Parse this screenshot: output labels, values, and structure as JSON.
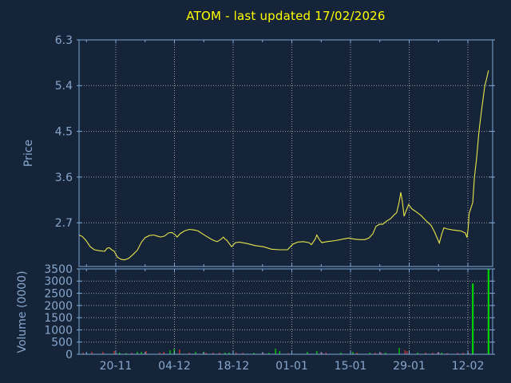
{
  "chart_data": {
    "type": "line",
    "title": "ATOM - last updated 17/02/2026",
    "title_color": "#ffff00",
    "colors": {
      "background": "#162439",
      "axis_frame": "#7fa8d4",
      "labels": "#87a7cd",
      "grid": "#c8c8c8",
      "price_line": "#e6e64a",
      "volume_up": "#00d200",
      "volume_down": "#d53434"
    },
    "x_axis": {
      "tick_labels": [
        "20-11",
        "04-12",
        "18-12",
        "01-01",
        "15-01",
        "29-01",
        "12-02"
      ],
      "tick_pos": [
        0.0888,
        0.2307,
        0.3726,
        0.5145,
        0.6564,
        0.7983,
        0.9402
      ],
      "minor_tick_pos": [
        0.0179,
        0.1598,
        0.3017,
        0.4436,
        0.5854,
        0.7273,
        0.8692
      ]
    },
    "panes": [
      {
        "name": "price",
        "type": "line",
        "ylabel": "Price",
        "yticks": [
          6.3,
          5.4,
          4.5,
          3.6,
          2.7
        ],
        "ylim": [
          1.84,
          6.3
        ],
        "points": [
          [
            0.0,
            2.46
          ],
          [
            0.008,
            2.43
          ],
          [
            0.017,
            2.35
          ],
          [
            0.027,
            2.23
          ],
          [
            0.037,
            2.17
          ],
          [
            0.05,
            2.15
          ],
          [
            0.062,
            2.14
          ],
          [
            0.068,
            2.2
          ],
          [
            0.073,
            2.21
          ],
          [
            0.079,
            2.17
          ],
          [
            0.085,
            2.14
          ],
          [
            0.093,
            2.02
          ],
          [
            0.102,
            1.98
          ],
          [
            0.11,
            1.97
          ],
          [
            0.12,
            2.0
          ],
          [
            0.131,
            2.08
          ],
          [
            0.141,
            2.16
          ],
          [
            0.151,
            2.32
          ],
          [
            0.16,
            2.41
          ],
          [
            0.17,
            2.45
          ],
          [
            0.18,
            2.46
          ],
          [
            0.189,
            2.44
          ],
          [
            0.197,
            2.42
          ],
          [
            0.207,
            2.44
          ],
          [
            0.216,
            2.5
          ],
          [
            0.224,
            2.51
          ],
          [
            0.232,
            2.47
          ],
          [
            0.237,
            2.42
          ],
          [
            0.245,
            2.49
          ],
          [
            0.255,
            2.54
          ],
          [
            0.266,
            2.57
          ],
          [
            0.278,
            2.56
          ],
          [
            0.288,
            2.54
          ],
          [
            0.297,
            2.49
          ],
          [
            0.307,
            2.44
          ],
          [
            0.317,
            2.39
          ],
          [
            0.326,
            2.35
          ],
          [
            0.334,
            2.33
          ],
          [
            0.342,
            2.37
          ],
          [
            0.349,
            2.42
          ],
          [
            0.353,
            2.38
          ],
          [
            0.357,
            2.36
          ],
          [
            0.369,
            2.23
          ],
          [
            0.378,
            2.31
          ],
          [
            0.388,
            2.32
          ],
          [
            0.407,
            2.29
          ],
          [
            0.427,
            2.25
          ],
          [
            0.446,
            2.23
          ],
          [
            0.465,
            2.18
          ],
          [
            0.485,
            2.17
          ],
          [
            0.504,
            2.17
          ],
          [
            0.517,
            2.28
          ],
          [
            0.529,
            2.32
          ],
          [
            0.542,
            2.33
          ],
          [
            0.556,
            2.31
          ],
          [
            0.562,
            2.27
          ],
          [
            0.571,
            2.38
          ],
          [
            0.575,
            2.46
          ],
          [
            0.581,
            2.37
          ],
          [
            0.587,
            2.31
          ],
          [
            0.6,
            2.33
          ],
          [
            0.62,
            2.35
          ],
          [
            0.639,
            2.38
          ],
          [
            0.652,
            2.4
          ],
          [
            0.664,
            2.38
          ],
          [
            0.678,
            2.37
          ],
          [
            0.691,
            2.37
          ],
          [
            0.701,
            2.4
          ],
          [
            0.71,
            2.48
          ],
          [
            0.718,
            2.63
          ],
          [
            0.726,
            2.67
          ],
          [
            0.734,
            2.67
          ],
          [
            0.743,
            2.73
          ],
          [
            0.753,
            2.78
          ],
          [
            0.761,
            2.85
          ],
          [
            0.768,
            2.9
          ],
          [
            0.774,
            3.11
          ],
          [
            0.778,
            3.3
          ],
          [
            0.782,
            3.1
          ],
          [
            0.786,
            2.83
          ],
          [
            0.791,
            2.94
          ],
          [
            0.797,
            3.06
          ],
          [
            0.805,
            2.97
          ],
          [
            0.813,
            2.93
          ],
          [
            0.826,
            2.85
          ],
          [
            0.838,
            2.75
          ],
          [
            0.851,
            2.65
          ],
          [
            0.859,
            2.53
          ],
          [
            0.867,
            2.38
          ],
          [
            0.871,
            2.3
          ],
          [
            0.877,
            2.48
          ],
          [
            0.882,
            2.6
          ],
          [
            0.89,
            2.58
          ],
          [
            0.903,
            2.56
          ],
          [
            0.923,
            2.54
          ],
          [
            0.934,
            2.5
          ],
          [
            0.938,
            2.41
          ],
          [
            0.941,
            2.6
          ],
          [
            0.943,
            2.88
          ],
          [
            0.946,
            2.95
          ],
          [
            0.952,
            3.1
          ],
          [
            0.956,
            3.6
          ],
          [
            0.961,
            3.95
          ],
          [
            0.967,
            4.5
          ],
          [
            0.973,
            4.9
          ],
          [
            0.981,
            5.4
          ],
          [
            0.986,
            5.55
          ],
          [
            0.99,
            5.7
          ]
        ]
      },
      {
        "name": "volume",
        "type": "bar",
        "ylabel": "Volume (0000)",
        "yticks": [
          3500,
          3000,
          2500,
          2000,
          1500,
          1000,
          500,
          0
        ],
        "ylim": [
          0,
          3500
        ],
        "bars": [
          [
            0.01,
            70,
            "r"
          ],
          [
            0.031,
            100,
            "r"
          ],
          [
            0.058,
            100,
            "r"
          ],
          [
            0.085,
            130,
            "r"
          ],
          [
            0.098,
            70,
            "g"
          ],
          [
            0.114,
            50,
            "g"
          ],
          [
            0.127,
            60,
            "r"
          ],
          [
            0.141,
            100,
            "g"
          ],
          [
            0.151,
            100,
            "g"
          ],
          [
            0.162,
            130,
            "r"
          ],
          [
            0.195,
            70,
            "r"
          ],
          [
            0.205,
            100,
            "r"
          ],
          [
            0.22,
            160,
            "g"
          ],
          [
            0.23,
            230,
            "g"
          ],
          [
            0.243,
            200,
            "r"
          ],
          [
            0.266,
            70,
            "r"
          ],
          [
            0.282,
            100,
            "g"
          ],
          [
            0.301,
            100,
            "g"
          ],
          [
            0.307,
            70,
            "r"
          ],
          [
            0.324,
            70,
            "r"
          ],
          [
            0.34,
            70,
            "r"
          ],
          [
            0.353,
            70,
            "g"
          ],
          [
            0.363,
            70,
            "g"
          ],
          [
            0.38,
            80,
            "r"
          ],
          [
            0.396,
            60,
            "r"
          ],
          [
            0.423,
            60,
            "g"
          ],
          [
            0.446,
            50,
            "r"
          ],
          [
            0.459,
            60,
            "g"
          ],
          [
            0.475,
            230,
            "g"
          ],
          [
            0.485,
            130,
            "g"
          ],
          [
            0.506,
            50,
            "r"
          ],
          [
            0.552,
            100,
            "g"
          ],
          [
            0.575,
            130,
            "g"
          ],
          [
            0.587,
            70,
            "r"
          ],
          [
            0.597,
            70,
            "r"
          ],
          [
            0.633,
            70,
            "g"
          ],
          [
            0.662,
            100,
            "g"
          ],
          [
            0.672,
            70,
            "r"
          ],
          [
            0.703,
            70,
            "g"
          ],
          [
            0.716,
            70,
            "r"
          ],
          [
            0.73,
            70,
            "r"
          ],
          [
            0.741,
            70,
            "g"
          ],
          [
            0.774,
            260,
            "g"
          ],
          [
            0.788,
            165,
            "r"
          ],
          [
            0.793,
            130,
            "r"
          ],
          [
            0.819,
            70,
            "g"
          ],
          [
            0.838,
            70,
            "r"
          ],
          [
            0.855,
            70,
            "r"
          ],
          [
            0.867,
            70,
            "r"
          ],
          [
            0.877,
            70,
            "g"
          ],
          [
            0.89,
            55,
            "r"
          ],
          [
            0.915,
            55,
            "r"
          ],
          [
            0.929,
            65,
            "r"
          ],
          [
            0.942,
            55,
            "r"
          ],
          [
            0.952,
            2900,
            "g"
          ],
          [
            0.99,
            3500,
            "g"
          ]
        ]
      }
    ]
  }
}
